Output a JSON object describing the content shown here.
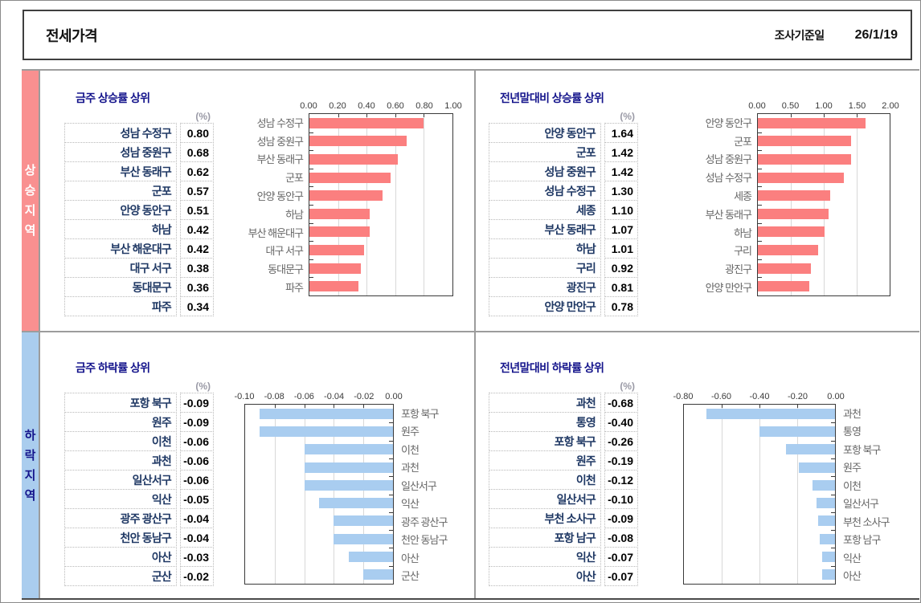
{
  "header": {
    "title": "전세가격",
    "survey_label": "조사기준일",
    "survey_date": "26/1/19"
  },
  "colors": {
    "rise_bar": "#fb7f7f",
    "rise_sidebar": "#f99090",
    "fall_bar": "#a9cdf0",
    "fall_sidebar": "#aacdee",
    "panel_title": "#15158c",
    "region_name": "#1f3864",
    "grid": "#d8d8d8"
  },
  "sections": [
    {
      "side_label": "상승지역",
      "side_label_stacked": "상\n승\n지\n역",
      "panels": [
        {
          "title": "금주 상승률 상위",
          "unit": "(%)",
          "rows": [
            {
              "name": "성남 수정구",
              "value": "0.80"
            },
            {
              "name": "성남 중원구",
              "value": "0.68"
            },
            {
              "name": "부산 동래구",
              "value": "0.62"
            },
            {
              "name": "군포",
              "value": "0.57"
            },
            {
              "name": "안양 동안구",
              "value": "0.51"
            },
            {
              "name": "하남",
              "value": "0.42"
            },
            {
              "name": "부산 해운대구",
              "value": "0.42"
            },
            {
              "name": "대구 서구",
              "value": "0.38"
            },
            {
              "name": "동대문구",
              "value": "0.36"
            },
            {
              "name": "파주",
              "value": "0.34"
            }
          ]
        },
        {
          "title": "전년말대비 상승률 상위",
          "unit": "(%)",
          "rows": [
            {
              "name": "안양 동안구",
              "value": "1.64"
            },
            {
              "name": "군포",
              "value": "1.42"
            },
            {
              "name": "성남 중원구",
              "value": "1.42"
            },
            {
              "name": "성남 수정구",
              "value": "1.30"
            },
            {
              "name": "세종",
              "value": "1.10"
            },
            {
              "name": "부산 동래구",
              "value": "1.07"
            },
            {
              "name": "하남",
              "value": "1.01"
            },
            {
              "name": "구리",
              "value": "0.92"
            },
            {
              "name": "광진구",
              "value": "0.81"
            },
            {
              "name": "안양 만안구",
              "value": "0.78"
            }
          ]
        }
      ]
    },
    {
      "side_label": "하락지역",
      "side_label_stacked": "하\n락\n지\n역",
      "panels": [
        {
          "title": "금주 하락률 상위",
          "unit": "(%)",
          "rows": [
            {
              "name": "포항 북구",
              "value": "-0.09"
            },
            {
              "name": "원주",
              "value": "-0.09"
            },
            {
              "name": "이천",
              "value": "-0.06"
            },
            {
              "name": "과천",
              "value": "-0.06"
            },
            {
              "name": "일산서구",
              "value": "-0.06"
            },
            {
              "name": "익산",
              "value": "-0.05"
            },
            {
              "name": "광주 광산구",
              "value": "-0.04"
            },
            {
              "name": "천안 동남구",
              "value": "-0.04"
            },
            {
              "name": "아산",
              "value": "-0.03"
            },
            {
              "name": "군산",
              "value": "-0.02"
            }
          ]
        },
        {
          "title": "전년말대비 하락률 상위",
          "unit": "(%)",
          "rows": [
            {
              "name": "과천",
              "value": "-0.68"
            },
            {
              "name": "통영",
              "value": "-0.40"
            },
            {
              "name": "포항 북구",
              "value": "-0.26"
            },
            {
              "name": "원주",
              "value": "-0.19"
            },
            {
              "name": "이천",
              "value": "-0.12"
            },
            {
              "name": "일산서구",
              "value": "-0.10"
            },
            {
              "name": "부천 소사구",
              "value": "-0.09"
            },
            {
              "name": "포항 남구",
              "value": "-0.08"
            },
            {
              "name": "익산",
              "value": "-0.07"
            },
            {
              "name": "아산",
              "value": "-0.07"
            }
          ]
        }
      ]
    }
  ],
  "chart_data": [
    {
      "type": "bar",
      "orientation": "horizontal",
      "title": "금주 상승률 상위",
      "unit": "%",
      "categories": [
        "성남 수정구",
        "성남 중원구",
        "부산 동래구",
        "군포",
        "안양 동안구",
        "하남",
        "부산 해운대구",
        "대구 서구",
        "동대문구",
        "파주"
      ],
      "values": [
        0.8,
        0.68,
        0.62,
        0.57,
        0.51,
        0.42,
        0.42,
        0.38,
        0.36,
        0.34
      ],
      "xlim": [
        0,
        1.0
      ],
      "tick_values": [
        0,
        0.2,
        0.4,
        0.6,
        0.8,
        1.0
      ],
      "tick_labels": [
        "0.00",
        "0.20",
        "0.40",
        "0.60",
        "0.80",
        "1.00"
      ],
      "bar_color": "#fb7f7f",
      "labels_side": "left",
      "grid": true,
      "legend": false
    },
    {
      "type": "bar",
      "orientation": "horizontal",
      "title": "전년말대비 상승률 상위",
      "unit": "%",
      "categories": [
        "안양 동안구",
        "군포",
        "성남 중원구",
        "성남 수정구",
        "세종",
        "부산 동래구",
        "하남",
        "구리",
        "광진구",
        "안양 만안구"
      ],
      "values": [
        1.64,
        1.42,
        1.42,
        1.3,
        1.1,
        1.07,
        1.01,
        0.92,
        0.81,
        0.78
      ],
      "xlim": [
        0,
        2.0
      ],
      "tick_values": [
        0,
        0.5,
        1.0,
        1.5,
        2.0
      ],
      "tick_labels": [
        "0.00",
        "0.50",
        "1.00",
        "1.50",
        "2.00"
      ],
      "bar_color": "#fb7f7f",
      "labels_side": "left",
      "grid": true,
      "legend": false
    },
    {
      "type": "bar",
      "orientation": "horizontal",
      "title": "금주 하락률 상위",
      "unit": "%",
      "categories": [
        "포항 북구",
        "원주",
        "이천",
        "과천",
        "일산서구",
        "익산",
        "광주 광산구",
        "천안 동남구",
        "아산",
        "군산"
      ],
      "values": [
        -0.09,
        -0.09,
        -0.06,
        -0.06,
        -0.06,
        -0.05,
        -0.04,
        -0.04,
        -0.03,
        -0.02
      ],
      "xlim": [
        -0.1,
        0
      ],
      "tick_values": [
        -0.1,
        -0.08,
        -0.06,
        -0.04,
        -0.02,
        0
      ],
      "tick_labels": [
        "-0.10",
        "-0.08",
        "-0.06",
        "-0.04",
        "-0.02",
        "0.00"
      ],
      "bar_color": "#a9cdf0",
      "labels_side": "right",
      "grid": true,
      "legend": false
    },
    {
      "type": "bar",
      "orientation": "horizontal",
      "title": "전년말대비 하락률 상위",
      "unit": "%",
      "categories": [
        "과천",
        "통영",
        "포항 북구",
        "원주",
        "이천",
        "일산서구",
        "부천 소사구",
        "포항 남구",
        "익산",
        "아산"
      ],
      "values": [
        -0.68,
        -0.4,
        -0.26,
        -0.19,
        -0.12,
        -0.1,
        -0.09,
        -0.08,
        -0.07,
        -0.07
      ],
      "xlim": [
        -0.8,
        0
      ],
      "tick_values": [
        -0.8,
        -0.6,
        -0.4,
        -0.2,
        0
      ],
      "tick_labels": [
        "-0.80",
        "-0.60",
        "-0.40",
        "-0.20",
        "0.00"
      ],
      "bar_color": "#a9cdf0",
      "labels_side": "right",
      "grid": true,
      "legend": false
    }
  ]
}
